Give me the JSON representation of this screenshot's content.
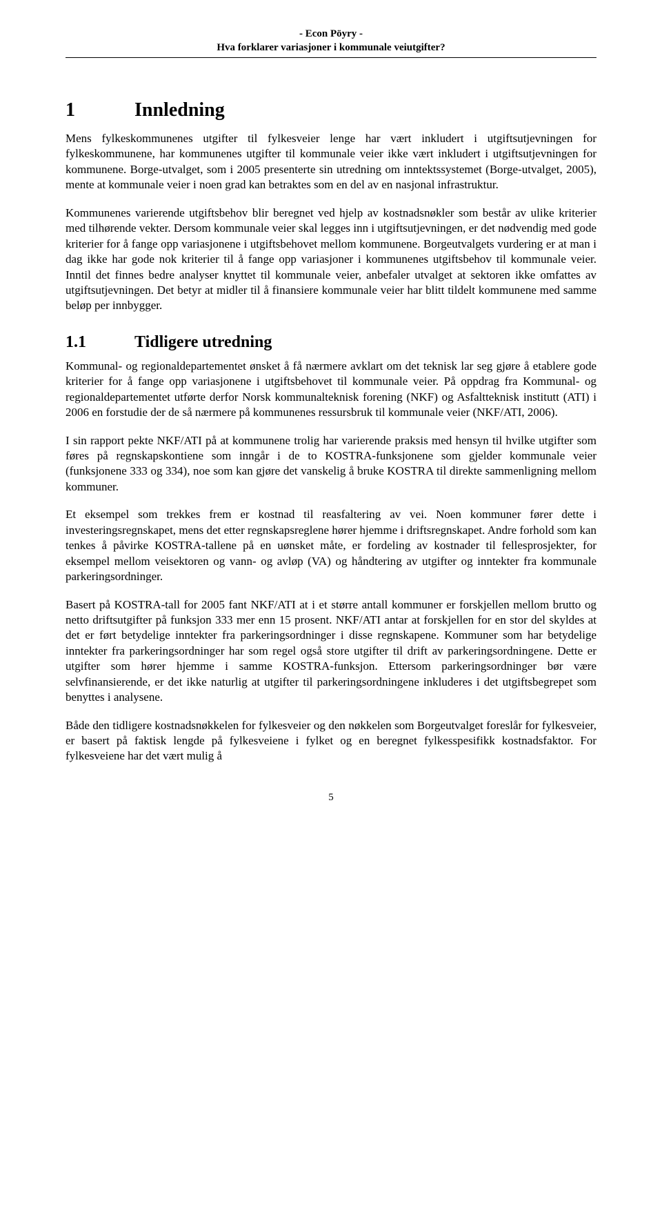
{
  "header": {
    "line1": "- Econ Pöyry -",
    "line2": "Hva forklarer variasjoner i kommunale veiutgifter?"
  },
  "section1": {
    "number": "1",
    "title": "Innledning",
    "para1": "Mens fylkeskommunenes utgifter til fylkesveier lenge har vært inkludert i utgifts­utjevningen for fylkeskommunene, har kommunenes utgifter til kommunale veier ikke vært inkludert i utgiftsutjevningen for kommunene. Borge-utvalget, som i 2005 presenterte sin utredning om inntektssystemet (Borge-utvalget, 2005), mente at kommunale veier i noen grad kan betraktes som en del av en nasjonal infrastruktur.",
    "para2": "Kommunenes varierende utgiftsbehov blir beregnet ved hjelp av kostnadsnøkler som består av ulike kriterier med tilhørende vekter. Dersom kommunale veier skal legges inn i utgiftsutjevningen, er det nødvendig med gode kriterier for å fange opp variasjonene i utgiftsbehovet mellom kommunene. Borgeutvalgets vurdering er at man i dag ikke har gode nok kriterier til å fange opp variasjoner i kommunenes utgiftsbehov til kommunale veier. Inntil det finnes bedre analyser knyttet til kommunale veier, anbefaler utvalget at sektoren ikke omfattes av utgiftsutjevningen. Det betyr at midler til å finansiere kommunale veier har blitt tildelt kommunene med samme beløp per innbygger."
  },
  "section1_1": {
    "number": "1.1",
    "title": "Tidligere utredning",
    "para1": "Kommunal- og regionaldepartementet ønsket å få nærmere avklart om det teknisk lar seg gjøre å etablere gode kriterier for å fange opp variasjonene i utgiftsbehovet til kommunale veier. På oppdrag fra Kommunal- og regionaldepartementet utførte derfor Norsk kommunalteknisk forening (NKF) og Asfaltteknisk institutt (ATI) i 2006 en for­studie der de så nærmere på kommunenes ressursbruk til kommunale veier (NKF/ATI, 2006).",
    "para2": "I sin rapport pekte NKF/ATI på at kommunene trolig har varierende praksis med hensyn til hvilke utgifter som føres på regnskapskontiene som inngår i de to KOSTRA-funksjonene som gjelder kommunale veier (funksjonene 333 og 334), noe som kan gjøre det vanskelig å bruke KOSTRA til direkte sammenligning mellom kommuner.",
    "para3": "Et eksempel som trekkes frem er kostnad til reasfaltering av vei. Noen kommuner fører dette i investeringsregnskapet, mens det etter regnskapsreglene hører hjemme i drifts­regnskapet. Andre forhold som kan tenkes å påvirke KOSTRA-tallene på en uønsket måte, er fordeling av kostnader til fellesprosjekter, for eksempel mellom veisektoren og vann- og avløp (VA) og håndtering av utgifter og inntekter fra kommunale parkerings­ordninger.",
    "para4": "Basert på KOSTRA-tall for 2005 fant NKF/ATI at i et større antall kommuner er forskjellen mellom brutto og netto driftsutgifter på funksjon 333 mer enn 15 prosent. NKF/ATI antar at forskjellen for en stor del skyldes at det er ført betydelige inntekter fra parkeringsordninger i disse regnskapene. Kommuner som har betydelige inntekter fra parkeringsordninger har som regel også store utgifter til drift av parkerings­ordningene. Dette er utgifter som hører hjemme i samme KOSTRA-funksjon. Ettersom parkeringsordninger bør være selvfinansierende, er det ikke naturlig at utgifter til parkeringsordningene inkluderes i det utgiftsbegrepet som benyttes i analysene.",
    "para5": "Både den tidligere kostnadsnøkkelen for fylkesveier og den nøkkelen som Borge­utvalget foreslår for fylkesveier, er basert på faktisk lengde på fylkesveiene i fylket og en beregnet fylkesspesifikk kostnadsfaktor. For fylkesveiene har det vært mulig å"
  },
  "pageNumber": "5"
}
